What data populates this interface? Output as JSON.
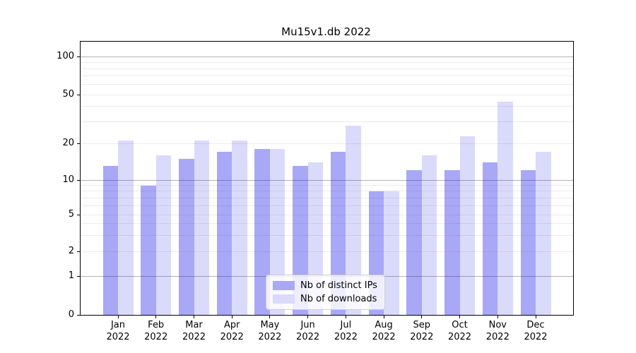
{
  "window": {
    "background": "#ffffff"
  },
  "chart_data": {
    "type": "bar",
    "title": "Mu15v1.db 2022",
    "xlabel": "",
    "ylabel": "",
    "grid": true,
    "yscale": "asinh (linear 0-1, logarithmic above 1)",
    "ylim": [
      0,
      130
    ],
    "yticks": [
      0,
      1,
      2,
      5,
      10,
      20,
      50,
      100
    ],
    "major_gridlines": [
      1,
      10,
      100
    ],
    "minor_gridlines": [
      2,
      3,
      4,
      5,
      6,
      7,
      8,
      9,
      20,
      30,
      40,
      50,
      60,
      70,
      80,
      90
    ],
    "categories": [
      "Jan 2022",
      "Feb 2022",
      "Mar 2022",
      "Apr 2022",
      "May 2022",
      "Jun 2022",
      "Jul 2022",
      "Aug 2022",
      "Sep 2022",
      "Oct 2022",
      "Nov 2022",
      "Dec 2022"
    ],
    "series": [
      {
        "name": "Nb of distinct IPs",
        "color": "#a8a8f5",
        "values": [
          13,
          9,
          15,
          17,
          18,
          13,
          17,
          8,
          12,
          12,
          14,
          12
        ]
      },
      {
        "name": "Nb of downloads",
        "color": "#dadafb",
        "values": [
          21,
          16,
          21,
          21,
          18,
          14,
          28,
          8,
          16,
          23,
          44,
          17
        ]
      }
    ],
    "legend_position": "lower center",
    "colors": {
      "major_grid": "#b4b4b4",
      "minor_grid": "#ebebeb",
      "axis": "#000000",
      "text": "#000000"
    }
  }
}
